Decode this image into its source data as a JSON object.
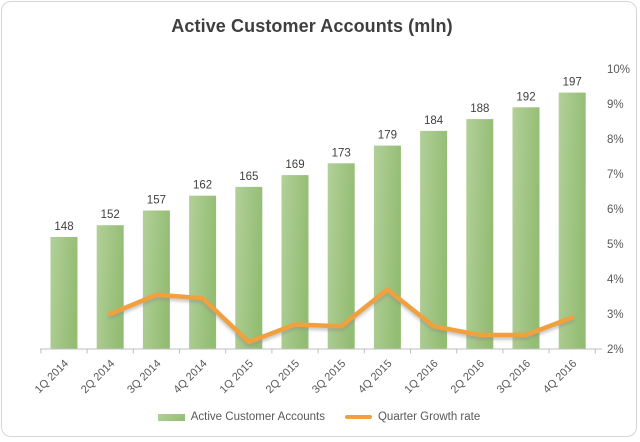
{
  "chart_data": {
    "type": "combo-bar-line",
    "title": "Active Customer Accounts (mln)",
    "categories": [
      "1Q 2014",
      "2Q 2014",
      "3Q 2014",
      "4Q 2014",
      "1Q 2015",
      "2Q 2015",
      "3Q 2015",
      "4Q 2015",
      "1Q 2016",
      "2Q 2016",
      "3Q 2016",
      "4Q 2016"
    ],
    "series": [
      {
        "name": "Active Customer Accounts",
        "type": "bar",
        "values": [
          148,
          152,
          157,
          162,
          165,
          169,
          173,
          179,
          184,
          188,
          192,
          197
        ],
        "data_labels": [
          "148",
          "152",
          "157",
          "162",
          "165",
          "169",
          "173",
          "179",
          "184",
          "188",
          "192",
          "197"
        ],
        "axis": "primary-hidden",
        "color_light": "#b2d099",
        "color_dark": "#94bd74"
      },
      {
        "name": "Quarter Growth rate",
        "type": "line",
        "values_pct": [
          null,
          3.0,
          3.55,
          3.45,
          2.2,
          2.7,
          2.65,
          3.7,
          2.65,
          2.4,
          2.4,
          2.9
        ],
        "axis": "secondary-right",
        "color": "#f0a13c"
      }
    ],
    "right_axis": {
      "min_pct": 2,
      "max_pct": 10,
      "tick_labels": [
        "10%",
        "9%",
        "8%",
        "7%",
        "6%",
        "5%",
        "4%",
        "3%",
        "2%"
      ]
    },
    "hidden_primary_axis": {
      "min": 110,
      "max": 205
    },
    "grid": "off",
    "legend_position": "bottom",
    "legend": [
      {
        "label": "Active Customer Accounts",
        "marker": "bar-swatch"
      },
      {
        "label": "Quarter Growth rate",
        "marker": "line-swatch"
      }
    ],
    "colors": {
      "bar_green": "#9cc07d",
      "line_orange": "#f0a13c",
      "title_text": "#3f3f3f",
      "axis_text": "#595959",
      "data_label_text": "#404040",
      "axis_line": "#bfbfbf",
      "frame_border": "#d6d6d6"
    }
  }
}
